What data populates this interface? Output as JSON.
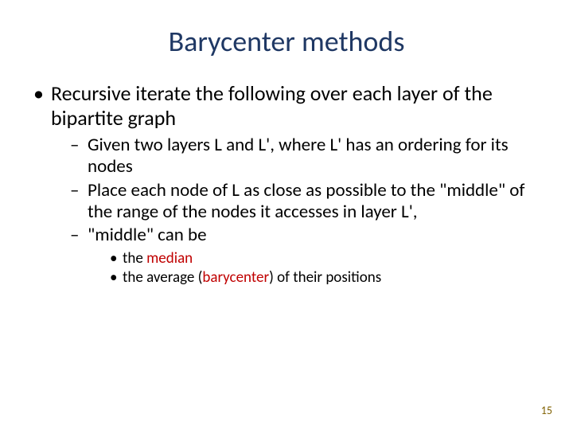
{
  "colors": {
    "title": "#1f3864",
    "body": "#000000",
    "highlight": "#c00000",
    "pagenum": "#7f6000",
    "background": "#ffffff"
  },
  "title": "Barycenter methods",
  "bullet1": "Recursive iterate the following over each layer of the bipartite graph",
  "sub1": "Given two layers L and L', where L' has an ordering for its nodes",
  "sub2": "Place each node of L as close as possible to the \"middle\" of the range of the nodes it accesses in layer L',",
  "sub3": "\"middle\" can be",
  "subsub1_pre": "the ",
  "subsub1_hl": "median",
  "subsub2_pre": "the average (",
  "subsub2_hl": "barycenter",
  "subsub2_post": ") of their positions",
  "pagenum": "15"
}
